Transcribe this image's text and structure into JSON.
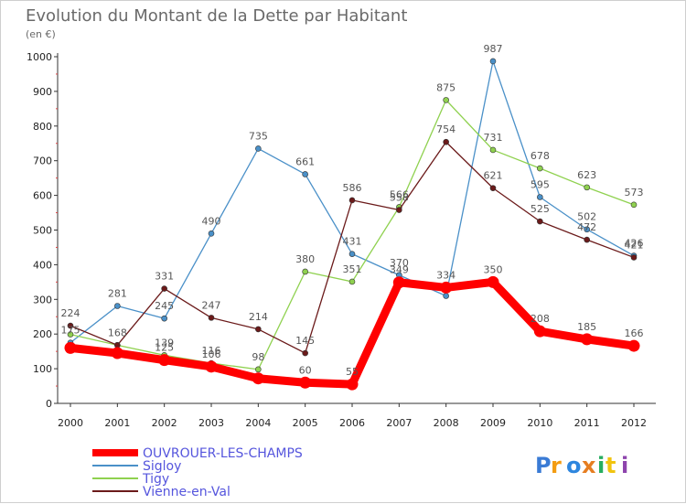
{
  "chart_data": {
    "type": "line",
    "title": "Evolution du Montant de la Dette par Habitant",
    "subtitle": "(en €)",
    "x": [
      "2000",
      "2001",
      "2002",
      "2003",
      "2004",
      "2005",
      "2006",
      "2007",
      "2008",
      "2009",
      "2010",
      "2011",
      "2012"
    ],
    "ylim": [
      0,
      1000
    ],
    "yticks": [
      0,
      100,
      200,
      300,
      400,
      500,
      600,
      700,
      800,
      900,
      1000
    ],
    "grid": false,
    "legend_placement": "bottom-left",
    "series": [
      {
        "name": "OUVROUER-LES-CHAMPS",
        "color": "#ff0000",
        "values": [
          160,
          145,
          125,
          106,
          72,
          60,
          55,
          349,
          334,
          350,
          208,
          185,
          166
        ],
        "labels": [
          "",
          "",
          "125",
          "106",
          "",
          "60",
          "55",
          "349",
          "334",
          "350",
          "208",
          "185",
          "166"
        ]
      },
      {
        "name": "Sigloy",
        "color": "#4a90c8",
        "values": [
          175,
          281,
          245,
          490,
          735,
          661,
          431,
          370,
          310,
          987,
          595,
          502,
          426
        ],
        "labels": [
          "175",
          "281",
          "245",
          "490",
          "735",
          "661",
          "431",
          "370",
          "",
          "987",
          "595",
          "502",
          "426"
        ]
      },
      {
        "name": "Tigy",
        "color": "#8fd14f",
        "values": [
          199,
          168,
          139,
          116,
          98,
          380,
          351,
          566,
          875,
          731,
          678,
          623,
          573
        ],
        "labels": [
          "",
          "168",
          "139",
          "116",
          "98",
          "380",
          "351",
          "566",
          "875",
          "731",
          "678",
          "623",
          "573"
        ]
      },
      {
        "name": "Vienne-en-Val",
        "color": "#6b1a1a",
        "values": [
          224,
          168,
          331,
          247,
          214,
          145,
          586,
          558,
          754,
          621,
          525,
          472,
          421
        ],
        "labels": [
          "224",
          "",
          "331",
          "247",
          "214",
          "145",
          "586",
          "558",
          "754",
          "621",
          "525",
          "472",
          "421"
        ]
      }
    ]
  },
  "branding": {
    "logo_text": "Proxiti"
  }
}
